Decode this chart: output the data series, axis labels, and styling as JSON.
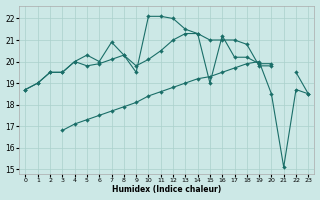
{
  "xlabel": "Humidex (Indice chaleur)",
  "bg_color": "#cce8e6",
  "grid_color": "#aad0cc",
  "line_color": "#1a6e68",
  "xlim": [
    -0.5,
    23.5
  ],
  "ylim": [
    14.8,
    22.6
  ],
  "yticks": [
    15,
    16,
    17,
    18,
    19,
    20,
    21,
    22
  ],
  "xticks": [
    0,
    1,
    2,
    3,
    4,
    5,
    6,
    7,
    8,
    9,
    10,
    11,
    12,
    13,
    14,
    15,
    16,
    17,
    18,
    19,
    20,
    21,
    22,
    23
  ],
  "line1_x": [
    0,
    1,
    2,
    3,
    4,
    5,
    6,
    7,
    8,
    9,
    10,
    11,
    12,
    13,
    14,
    15,
    16,
    17,
    18,
    19,
    20,
    21,
    22,
    23
  ],
  "line1_y": [
    18.7,
    19.0,
    19.5,
    19.5,
    20.0,
    20.3,
    20.0,
    20.9,
    20.3,
    19.5,
    22.1,
    22.1,
    22.0,
    21.5,
    21.3,
    19.0,
    21.2,
    20.2,
    20.2,
    19.9,
    19.9,
    null,
    19.5,
    18.5
  ],
  "line2_x": [
    0,
    1,
    2,
    3,
    4,
    5,
    6,
    7,
    8,
    9,
    10,
    11,
    12,
    13,
    14,
    15,
    16,
    17,
    18,
    19,
    20
  ],
  "line2_y": [
    18.7,
    19.0,
    19.5,
    19.5,
    20.0,
    19.8,
    19.9,
    20.1,
    20.3,
    19.8,
    20.1,
    20.5,
    21.0,
    21.3,
    21.3,
    21.0,
    21.0,
    21.0,
    20.8,
    19.8,
    19.8
  ],
  "line3_x": [
    3,
    4,
    5,
    6,
    7,
    8,
    9,
    10,
    11,
    12,
    13,
    14,
    15,
    16,
    17,
    18,
    19,
    20,
    21,
    22,
    23
  ],
  "line3_y": [
    16.8,
    17.1,
    17.3,
    17.5,
    17.7,
    17.9,
    18.1,
    18.4,
    18.6,
    18.8,
    19.0,
    19.2,
    19.3,
    19.5,
    19.7,
    19.9,
    20.0,
    18.5,
    15.1,
    18.7,
    18.5
  ]
}
